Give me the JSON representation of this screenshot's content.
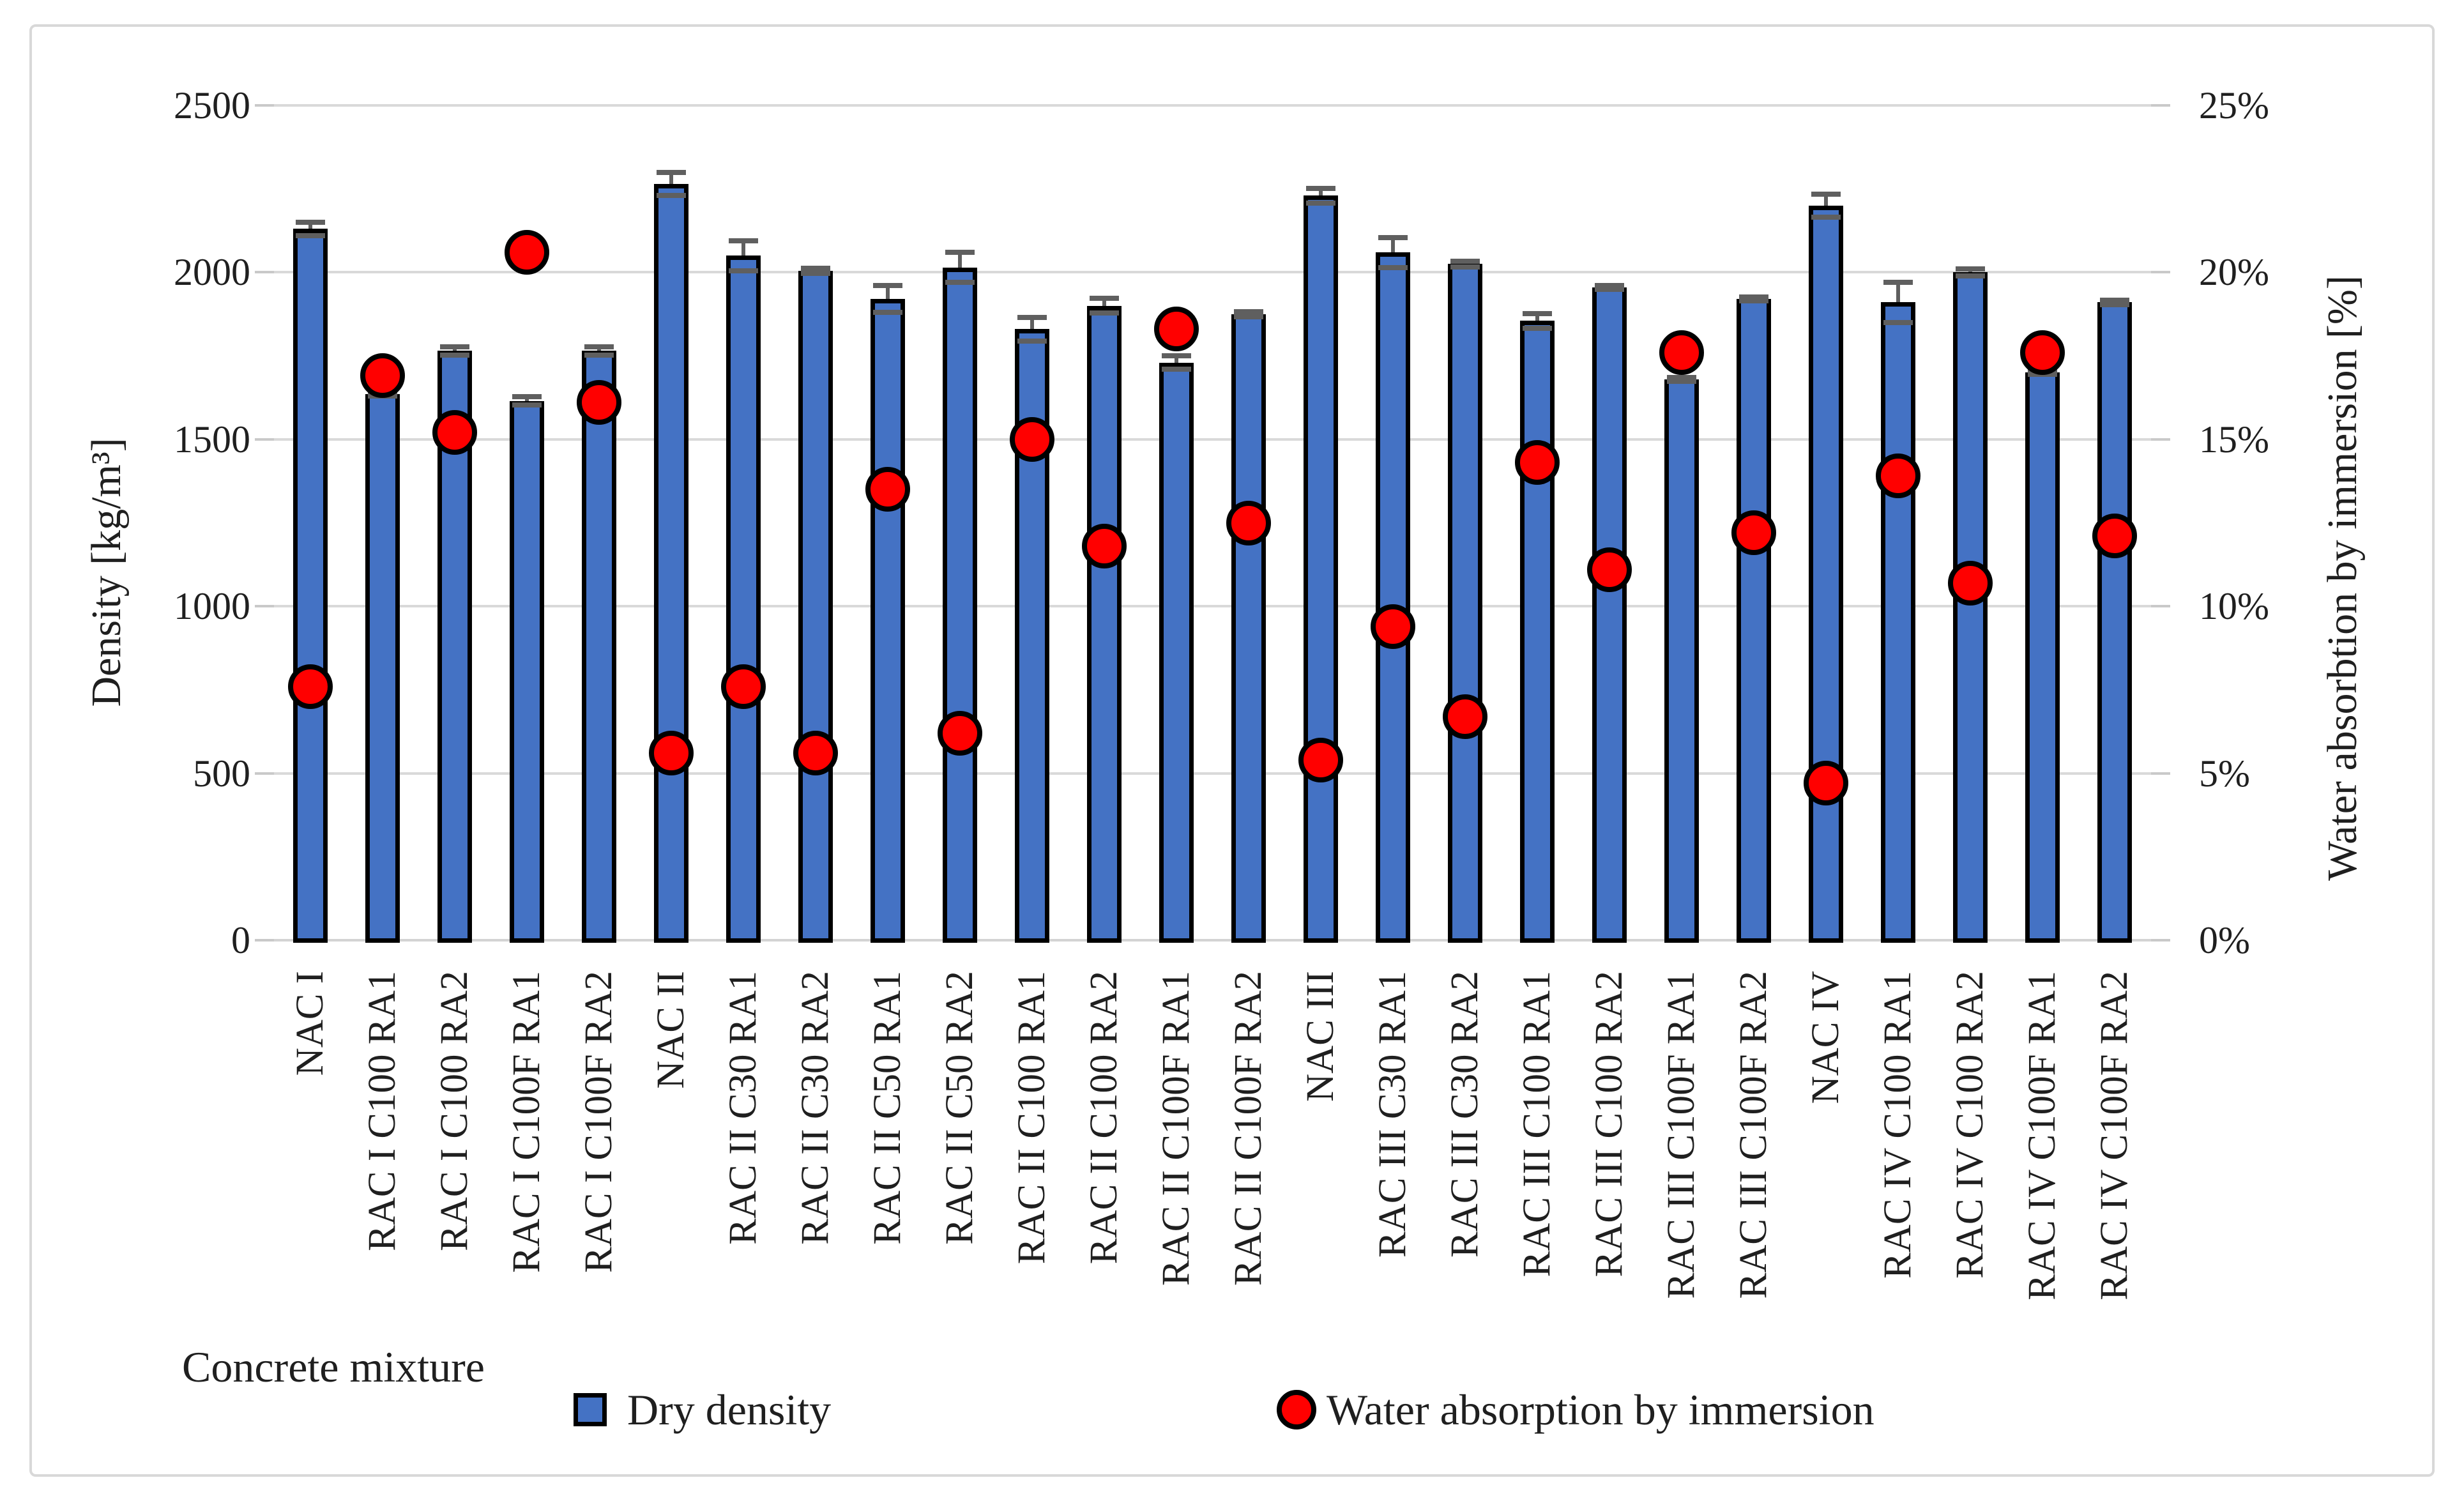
{
  "chart_data": {
    "type": "bar",
    "subtype": "combo-bar-scatter-dual-axis",
    "title": "",
    "categories": [
      "NAC I",
      "RAC I C100 RA1",
      "RAC I C100 RA2",
      "RAC I C100F RA1",
      "RAC I C100F RA2",
      "NAC II",
      "RAC II C30 RA1",
      "RAC II C30 RA2",
      "RAC II C50 RA1",
      "RAC II C50 RA2",
      "RAC II C100 RA1",
      "RAC II C100 RA2",
      "RAC II C100F RA1",
      "RAC II C100F RA2",
      "NAC III",
      "RAC III C30 RA1",
      "RAC III C30 RA2",
      "RAC III C100 RA1",
      "RAC III C100 RA2",
      "RAC III C100F RA1",
      "RAC III C100F RA2",
      "NAC IV",
      "RAC IV C100 RA1",
      "RAC IV C100 RA2",
      "RAC IV C100F RA1",
      "RAC IV C100F RA2"
    ],
    "series": [
      {
        "name": "Dry density",
        "type": "bar",
        "axis": "left",
        "color": "#4472C4",
        "outline_color": "#000000",
        "values": [
          2130,
          1635,
          1765,
          1615,
          1765,
          2265,
          2050,
          2005,
          1920,
          2015,
          1830,
          1900,
          1730,
          1875,
          2230,
          2060,
          2025,
          1855,
          1955,
          1680,
          1920,
          2200,
          1910,
          2000,
          1700,
          1910
        ],
        "errors": [
          20,
          6,
          12,
          12,
          12,
          35,
          45,
          8,
          40,
          45,
          35,
          22,
          20,
          8,
          22,
          45,
          8,
          22,
          6,
          6,
          6,
          35,
          60,
          10,
          6,
          6
        ]
      },
      {
        "name": "Water absorption by immersion",
        "type": "scatter",
        "axis": "right",
        "color": "#FF0000",
        "outline_color": "#000000",
        "values": [
          7.6,
          16.9,
          15.2,
          20.6,
          16.1,
          5.6,
          7.6,
          5.6,
          13.5,
          6.2,
          15.0,
          11.8,
          18.3,
          12.5,
          5.4,
          9.4,
          6.7,
          14.3,
          11.1,
          17.6,
          12.2,
          4.7,
          13.9,
          10.7,
          17.6,
          12.1
        ]
      }
    ],
    "x_axis": {
      "title": "Concrete mixture",
      "labels_rotation_deg": -90
    },
    "left_axis": {
      "title": "Density [kg/m³]",
      "min": 0,
      "max": 2500,
      "step": 500,
      "tick_labels": [
        "0",
        "500",
        "1000",
        "1500",
        "2000",
        "2500"
      ]
    },
    "right_axis": {
      "title": "Water absorbtion by immersion [%]",
      "min": 0,
      "max": 25,
      "step": 5,
      "tick_labels": [
        "0%",
        "5%",
        "10%",
        "15%",
        "20%",
        "25%"
      ]
    },
    "legend": {
      "position": "bottom",
      "items": [
        {
          "label": "Dry density",
          "marker": "square",
          "color": "#4472C4"
        },
        {
          "label": "Water absorption by immersion",
          "marker": "circle",
          "color": "#FF0000"
        }
      ]
    },
    "grid": {
      "horizontal": true,
      "color": "#d9d9d9"
    },
    "error_bar_color": "#5f5f5f"
  }
}
